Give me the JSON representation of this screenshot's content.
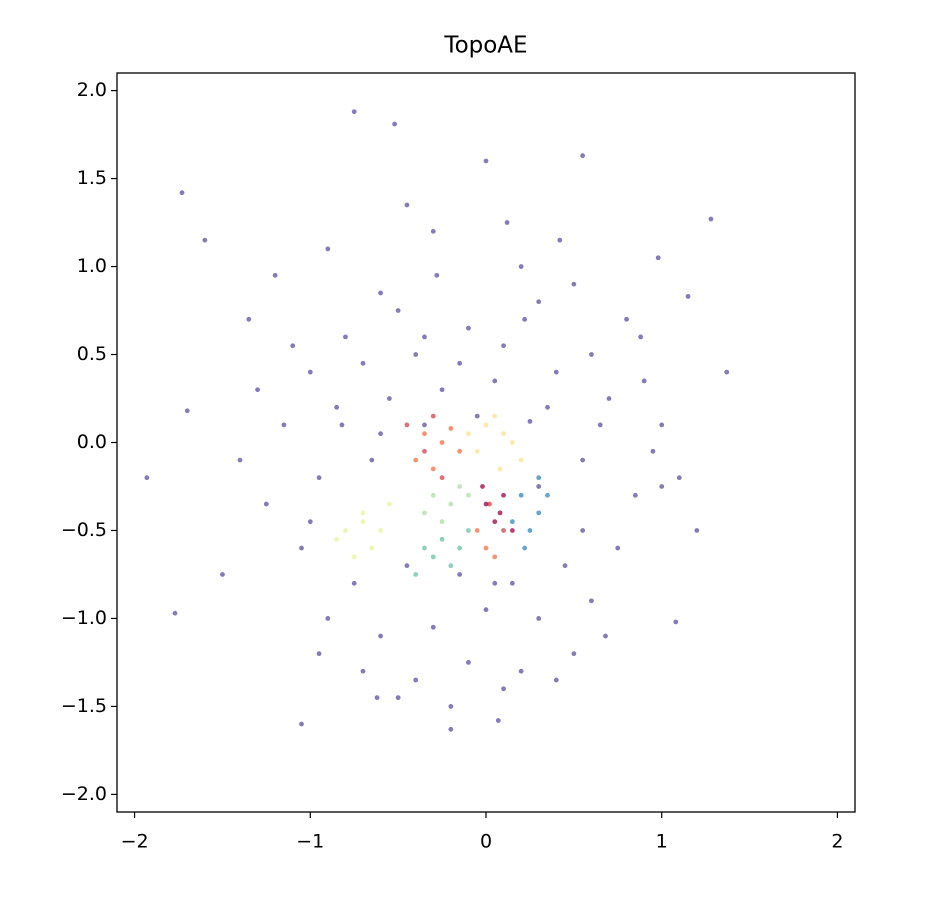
{
  "chart_data": {
    "type": "scatter",
    "title": "TopoAE",
    "xlim": [
      -2.1,
      2.1
    ],
    "ylim": [
      -2.1,
      2.1
    ],
    "xticks": [
      {
        "value": -2,
        "label": "−2"
      },
      {
        "value": -1,
        "label": "−1"
      },
      0,
      1,
      2
    ],
    "yticks": [
      {
        "value": -2,
        "label": "−2.0"
      },
      {
        "value": -1.5,
        "label": "−1.5"
      },
      {
        "value": -1,
        "label": "−1.0"
      },
      {
        "value": -0.5,
        "label": "−0.5"
      },
      {
        "value": 0,
        "label": "0.0"
      },
      0.5,
      {
        "value": 1,
        "label": "1.0"
      },
      1.5,
      {
        "value": 2,
        "label": "2.0"
      }
    ],
    "series": [
      {
        "color": "#5e4fa2",
        "x": [
          -0.75,
          -0.52,
          0,
          0.55,
          -1.73,
          1.28,
          -1.93,
          -1.77,
          1.08,
          1.37,
          -1.05,
          -0.2,
          0.07,
          -1.6,
          1.15,
          -1.7,
          0.98,
          -1.2,
          -0.9,
          -0.6,
          -0.3,
          0.2,
          0.5,
          0.8,
          -1.1,
          -0.8,
          -0.5,
          -0.1,
          0.3,
          0.6,
          0.9,
          -1.3,
          -1.0,
          -0.7,
          -0.4,
          0.1,
          0.4,
          0.7,
          1.0,
          -1.4,
          -1.15,
          -0.85,
          -0.55,
          -0.25,
          0.05,
          0.35,
          0.65,
          0.95,
          -1.25,
          -0.95,
          -0.65,
          -0.35,
          -0.05,
          0.25,
          0.55,
          0.85,
          -1.05,
          -0.75,
          -0.45,
          -0.15,
          0.15,
          0.45,
          0.75,
          -0.9,
          -0.6,
          -0.3,
          0.0,
          0.3,
          0.6,
          -0.7,
          -0.4,
          -0.1,
          0.2,
          0.5,
          -0.5,
          -0.2,
          0.1,
          0.4,
          -1.5,
          1.2,
          -1.35,
          1.1,
          -0.95,
          0.88,
          -0.45,
          0.12,
          -0.28,
          0.42,
          -0.62,
          0.68,
          -0.82,
          0.3,
          -0.15,
          0.55,
          -1.0,
          1.0,
          -0.35,
          0.22,
          -0.6,
          0.05
        ],
        "y": [
          1.88,
          1.81,
          1.6,
          1.63,
          1.42,
          1.27,
          -0.2,
          -0.97,
          -1.02,
          0.4,
          -1.6,
          -1.63,
          -1.58,
          1.15,
          0.83,
          0.18,
          1.05,
          0.95,
          1.1,
          0.85,
          1.2,
          1.0,
          0.9,
          0.7,
          0.55,
          0.6,
          0.75,
          0.65,
          0.8,
          0.5,
          0.35,
          0.3,
          0.4,
          0.45,
          0.5,
          0.55,
          0.4,
          0.25,
          0.1,
          -0.1,
          0.1,
          0.2,
          0.25,
          0.3,
          0.35,
          0.2,
          0.1,
          -0.05,
          -0.35,
          -0.2,
          -0.1,
          0.1,
          0.15,
          0.12,
          -0.1,
          -0.3,
          -0.6,
          -0.8,
          -0.7,
          -0.75,
          -0.8,
          -0.7,
          -0.6,
          -1.0,
          -1.1,
          -1.05,
          -0.95,
          -1.0,
          -0.9,
          -1.3,
          -1.35,
          -1.25,
          -1.3,
          -1.2,
          -1.45,
          -1.5,
          -1.4,
          -1.35,
          -0.75,
          -0.5,
          0.7,
          -0.2,
          -1.2,
          0.6,
          1.35,
          1.25,
          0.95,
          1.15,
          -1.45,
          -1.1,
          0.1,
          -0.25,
          0.45,
          -0.5,
          -0.45,
          -0.25,
          0.6,
          0.7,
          0.05,
          -0.8
        ]
      },
      {
        "color": "#fee08b",
        "x": [
          0.0,
          0.1,
          -0.05,
          0.15,
          0.05,
          -0.1,
          0.2,
          0.08
        ],
        "y": [
          0.1,
          0.05,
          -0.05,
          0.0,
          0.15,
          0.05,
          -0.1,
          -0.15
        ]
      },
      {
        "color": "#f46d43",
        "x": [
          -0.35,
          -0.25,
          -0.4,
          -0.3,
          -0.2,
          -0.15,
          0.0,
          -0.05,
          0.05
        ],
        "y": [
          0.05,
          0.0,
          -0.1,
          -0.15,
          0.08,
          -0.05,
          -0.6,
          -0.5,
          -0.65
        ]
      },
      {
        "color": "#d53e4f",
        "x": [
          -0.45,
          -0.35,
          -0.25,
          -0.3,
          0.02,
          0.1
        ],
        "y": [
          0.1,
          -0.05,
          -0.2,
          0.15,
          -0.35,
          -0.5
        ]
      },
      {
        "color": "#9e0142",
        "x": [
          0.0,
          0.05,
          0.1,
          0.15,
          -0.02,
          0.08
        ],
        "y": [
          -0.35,
          -0.45,
          -0.3,
          -0.5,
          -0.25,
          -0.4
        ]
      },
      {
        "color": "#3288bd",
        "x": [
          0.2,
          0.3,
          0.25,
          0.35,
          0.15,
          0.3,
          0.22
        ],
        "y": [
          -0.3,
          -0.4,
          -0.5,
          -0.3,
          -0.45,
          -0.2,
          -0.6
        ]
      },
      {
        "color": "#e6f598",
        "x": [
          -0.8,
          -0.7,
          -0.65,
          -0.75,
          -0.6,
          -0.85,
          -0.55,
          -0.7
        ],
        "y": [
          -0.5,
          -0.45,
          -0.6,
          -0.65,
          -0.5,
          -0.55,
          -0.35,
          -0.4
        ]
      },
      {
        "color": "#abdda4",
        "x": [
          -0.3,
          -0.2,
          -0.25,
          -0.15,
          -0.35,
          -0.1
        ],
        "y": [
          -0.3,
          -0.35,
          -0.45,
          -0.25,
          -0.4,
          -0.3
        ]
      },
      {
        "color": "#66c2a5",
        "x": [
          -0.25,
          -0.15,
          -0.3,
          -0.2,
          -0.1,
          -0.4,
          -0.35
        ],
        "y": [
          -0.55,
          -0.6,
          -0.65,
          -0.7,
          -0.5,
          -0.75,
          -0.6
        ]
      }
    ]
  }
}
